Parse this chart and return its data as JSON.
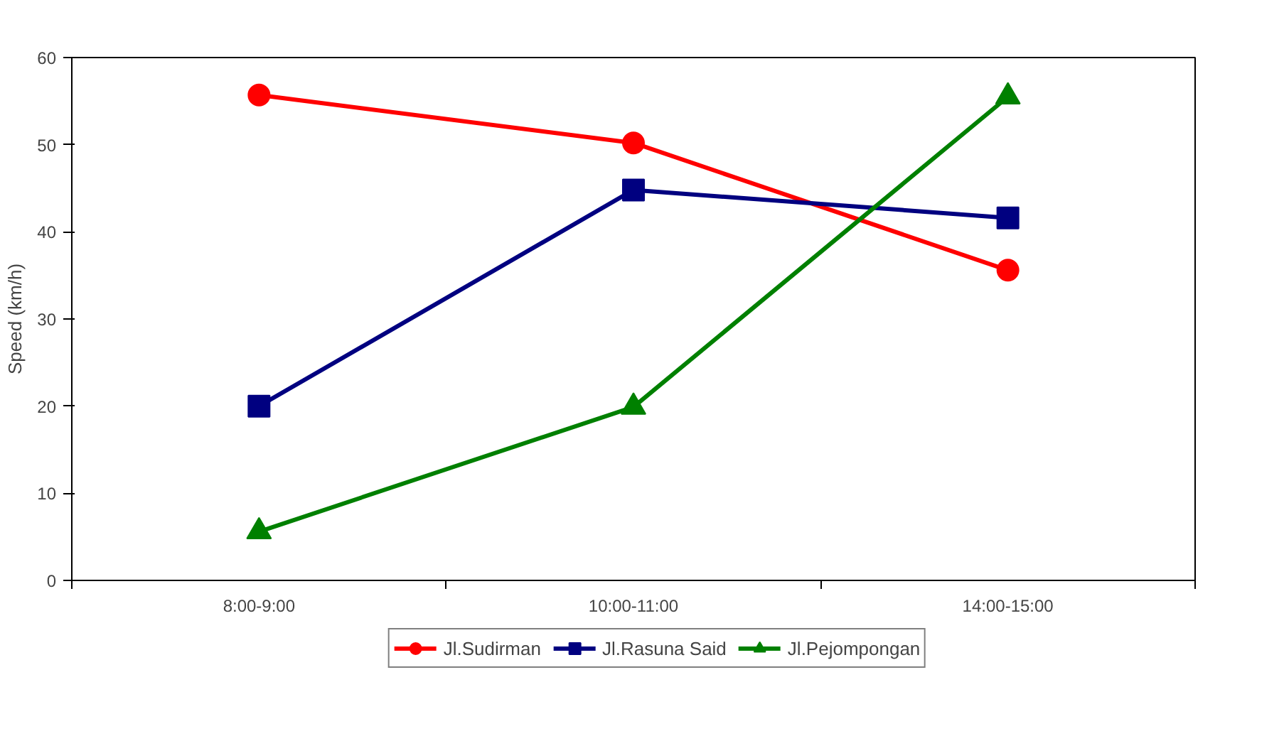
{
  "chart_data": {
    "type": "line",
    "ylabel": "Speed (km/h)",
    "categories": [
      "8:00-9:00",
      "10:00-11:00",
      "14:00-15:00"
    ],
    "ylim": [
      0,
      60
    ],
    "yticks": [
      0,
      10,
      20,
      30,
      40,
      50,
      60
    ],
    "grid": false,
    "legend": "bottom",
    "line_style": "solid",
    "series": [
      {
        "name": "Jl.Sudirman",
        "color": "#ff0000",
        "marker": "circle",
        "values": [
          55.7,
          50.2,
          35.6
        ]
      },
      {
        "name": "Jl.Rasuna Said",
        "color": "#000080",
        "marker": "square",
        "values": [
          20.0,
          44.8,
          41.6
        ]
      },
      {
        "name": "Jl.Pejompongan",
        "color": "#008000",
        "marker": "triangle",
        "values": [
          5.6,
          19.9,
          55.5
        ]
      }
    ]
  }
}
